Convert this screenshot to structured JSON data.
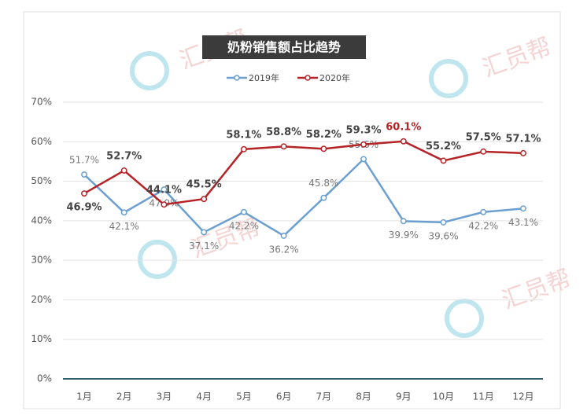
{
  "chart_data": {
    "type": "line",
    "title": "奶粉销售额占比趋势",
    "watermark": "汇员帮",
    "categories": [
      "1月",
      "2月",
      "3月",
      "4月",
      "5月",
      "6月",
      "7月",
      "8月",
      "9月",
      "10月",
      "11月",
      "12月"
    ],
    "series": [
      {
        "name": "2019年",
        "color": "#6a9fd0",
        "values": [
          51.7,
          42.1,
          47.9,
          37.1,
          42.2,
          36.2,
          45.8,
          55.6,
          39.9,
          39.6,
          42.2,
          43.1
        ],
        "value_labels": [
          "51.7%",
          "42.1%",
          "47.9%",
          "37.1%",
          "42.2%",
          "36.2%",
          "45.8%",
          "55.6%",
          "39.9%",
          "39.6%",
          "42.2%",
          "43.1%"
        ]
      },
      {
        "name": "2020年",
        "color": "#b52326",
        "values": [
          46.9,
          52.7,
          44.1,
          45.5,
          58.1,
          58.8,
          58.2,
          59.3,
          60.1,
          55.2,
          57.5,
          57.1
        ],
        "value_labels": [
          "46.9%",
          "52.7%",
          "44.1%",
          "45.5%",
          "58.1%",
          "58.8%",
          "58.2%",
          "59.3%",
          "60.1%",
          "55.2%",
          "57.5%",
          "57.1%"
        ]
      }
    ],
    "ylim": [
      0,
      70
    ],
    "yticks": [
      {
        "value": 0,
        "label": "0%"
      },
      {
        "value": 10,
        "label": "10%"
      },
      {
        "value": 20,
        "label": "20%"
      },
      {
        "value": 30,
        "label": "30%"
      },
      {
        "value": 40,
        "label": "40%"
      },
      {
        "value": 50,
        "label": "50%"
      },
      {
        "value": 60,
        "label": "60%"
      },
      {
        "value": 70,
        "label": "70%"
      }
    ],
    "grid": true,
    "legend": "top"
  }
}
